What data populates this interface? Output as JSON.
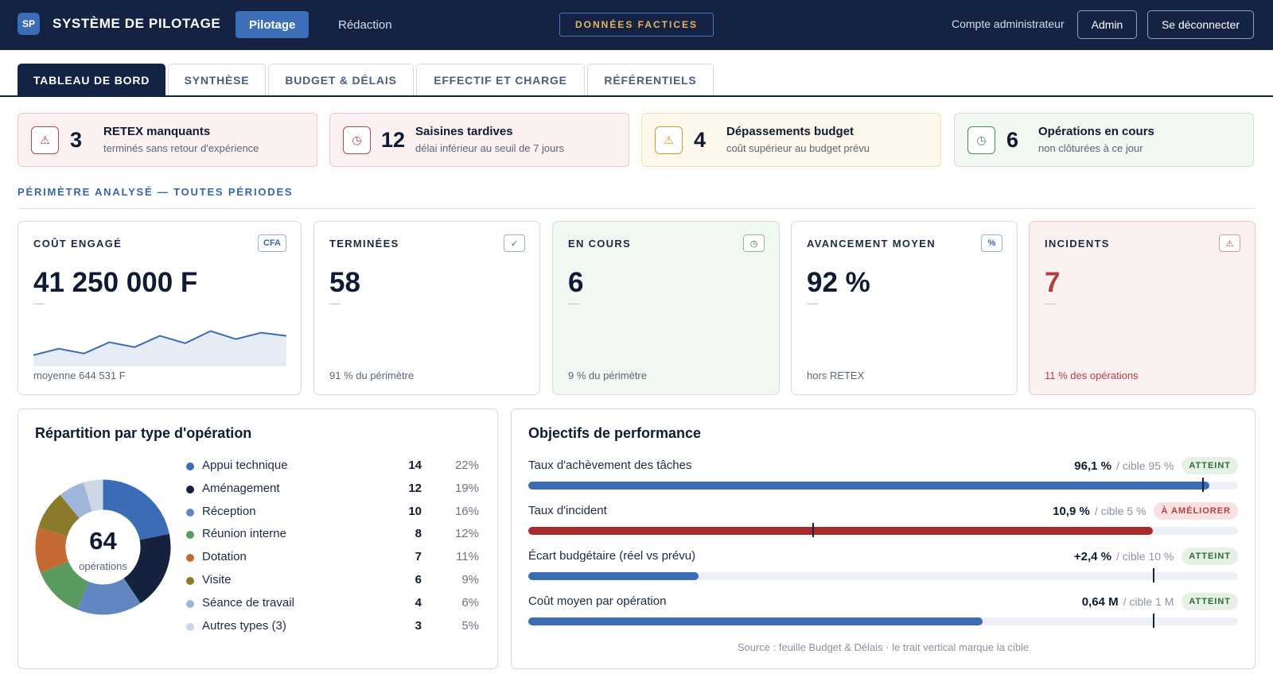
{
  "header": {
    "logo": "SP",
    "title": "SYSTÈME DE PILOTAGE",
    "nav": [
      {
        "label": "Pilotage",
        "active": true
      },
      {
        "label": "Rédaction",
        "active": false
      }
    ],
    "demo_badge": "DONNÉES FACTICES",
    "account_label": "Compte administrateur",
    "admin_button": "Admin",
    "logout_button": "Se déconnecter"
  },
  "tabs": [
    {
      "label": "TABLEAU DE BORD",
      "active": true
    },
    {
      "label": "SYNTHÈSE",
      "active": false
    },
    {
      "label": "BUDGET & DÉLAIS",
      "active": false
    },
    {
      "label": "EFFECTIF ET CHARGE",
      "active": false
    },
    {
      "label": "RÉFÉRENTIELS",
      "active": false
    }
  ],
  "alerts": [
    {
      "count": "3",
      "title": "RETEX manquants",
      "subtitle": "terminés sans retour d'expérience",
      "icon": "warning-icon",
      "tone": "red"
    },
    {
      "count": "12",
      "title": "Saisines tardives",
      "subtitle": "délai inférieur au seuil de 7 jours",
      "icon": "clock-icon",
      "tone": "red"
    },
    {
      "count": "4",
      "title": "Dépassements budget",
      "subtitle": "coût supérieur au budget prévu",
      "icon": "warning-icon",
      "tone": "yellow"
    },
    {
      "count": "6",
      "title": "Opérations en cours",
      "subtitle": "non clôturées à ce jour",
      "icon": "clock-icon",
      "tone": "green"
    }
  ],
  "scope_label": "PÉRIMÈTRE ANALYSÉ — TOUTES PÉRIODES",
  "kpis": [
    {
      "label": "COÛT ENGAGÉ",
      "badge": "CFA",
      "value": "41 250 000 F",
      "footer": "moyenne 644 531 F"
    },
    {
      "label": "TERMINÉES",
      "badge": "✓",
      "value": "58",
      "footer": "91 % du périmètre"
    },
    {
      "label": "EN COURS",
      "badge": "◷",
      "value": "6",
      "footer": "9 % du périmètre"
    },
    {
      "label": "AVANCEMENT MOYEN",
      "badge": "%",
      "value": "92 %",
      "footer": "hors RETEX"
    },
    {
      "label": "INCIDENTS",
      "badge": "⚠",
      "value": "7",
      "footer": "11 % des opérations"
    }
  ],
  "sparkline": [
    0.35,
    0.55,
    0.4,
    0.75,
    0.6,
    0.95,
    0.72,
    1.1,
    0.85,
    1.05,
    0.95
  ],
  "distribution": {
    "title": "Répartition par type d'opération",
    "total": "64",
    "total_caption": "opérations",
    "items": [
      {
        "name": "Appui technique",
        "count": "14",
        "pct": "22%",
        "value": 14,
        "color": "#3b6cb5"
      },
      {
        "name": "Aménagement",
        "count": "12",
        "pct": "19%",
        "value": 12,
        "color": "#16213d"
      },
      {
        "name": "Réception",
        "count": "10",
        "pct": "16%",
        "value": 10,
        "color": "#6286c2"
      },
      {
        "name": "Réunion interne",
        "count": "8",
        "pct": "12%",
        "value": 8,
        "color": "#5a9a5e"
      },
      {
        "name": "Dotation",
        "count": "7",
        "pct": "11%",
        "value": 7,
        "color": "#c46a32"
      },
      {
        "name": "Visite",
        "count": "6",
        "pct": "9%",
        "value": 6,
        "color": "#8a7a2a"
      },
      {
        "name": "Séance de travail",
        "count": "4",
        "pct": "6%",
        "value": 4,
        "color": "#9fb6da"
      },
      {
        "name": "Autres types (3)",
        "count": "3",
        "pct": "5%",
        "value": 3,
        "color": "#cdd7e6"
      }
    ]
  },
  "objectives": {
    "title": "Objectifs de performance",
    "items": [
      {
        "name": "Taux d'achèvement des tâches",
        "value": "96,1 %",
        "target": "/ cible 95 %",
        "status": "ATTEINT",
        "ok": true,
        "fill": 0.96,
        "marker": 0.95,
        "color": "#3b6cb5"
      },
      {
        "name": "Taux d'incident",
        "value": "10,9 %",
        "target": "/ cible 5 %",
        "status": "À AMÉLIORER",
        "ok": false,
        "fill": 0.88,
        "marker": 0.4,
        "color": "#a82a2a"
      },
      {
        "name": "Écart budgétaire (réel vs prévu)",
        "value": "+2,4 %",
        "target": "/ cible 10 %",
        "status": "ATTEINT",
        "ok": true,
        "fill": 0.24,
        "marker": 0.88,
        "color": "#3b6cb5"
      },
      {
        "name": "Coût moyen par opération",
        "value": "0,64 M",
        "target": "/ cible 1 M",
        "status": "ATTEINT",
        "ok": true,
        "fill": 0.64,
        "marker": 0.88,
        "color": "#3b6cb5"
      }
    ],
    "source": "Source : feuille Budget & Délais · le trait vertical marque la cible"
  }
}
